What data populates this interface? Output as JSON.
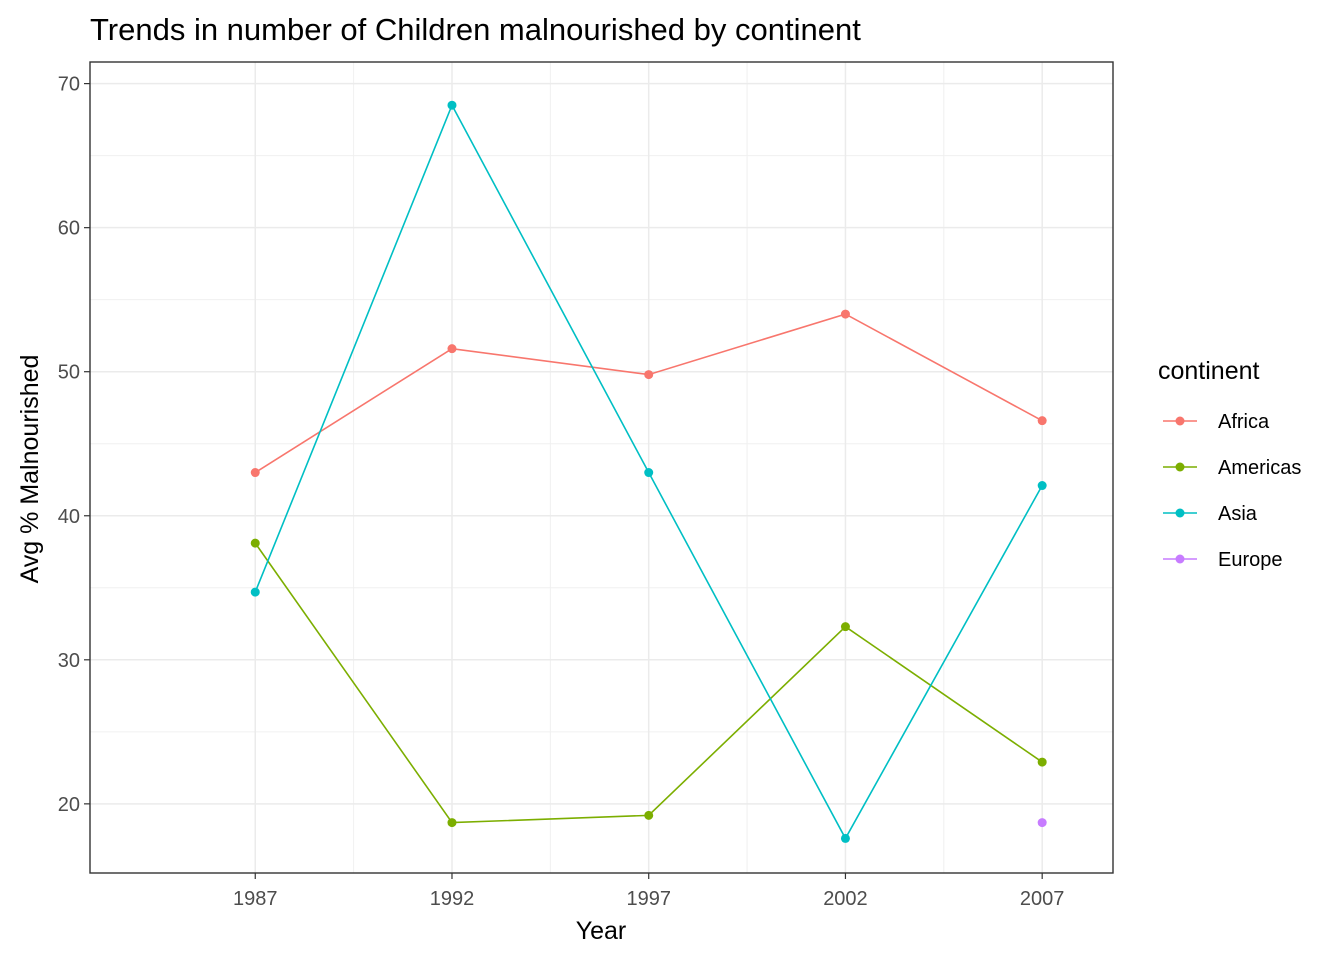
{
  "chart_data": {
    "type": "line",
    "title": "Trends in number of Children malnourished by continent",
    "xlabel": "Year",
    "ylabel": "Avg % Malnourished",
    "x": [
      1987,
      1992,
      1997,
      2002,
      2007
    ],
    "x_tick_labels": [
      "1987",
      "1992",
      "1997",
      "2002",
      "2007"
    ],
    "xlim": [
      1982.8,
      2008.8
    ],
    "ylim": [
      15.2,
      71.5
    ],
    "y_ticks": [
      20,
      30,
      40,
      50,
      60,
      70
    ],
    "y_tick_labels": [
      "20",
      "30",
      "40",
      "50",
      "60",
      "70"
    ],
    "grid": true,
    "legend": {
      "title": "continent",
      "position": "right"
    },
    "series": [
      {
        "name": "Africa",
        "color": "#F8766D",
        "values": [
          43.0,
          51.6,
          49.8,
          54.0,
          46.6
        ]
      },
      {
        "name": "Americas",
        "color": "#7CAE00",
        "values": [
          38.1,
          18.7,
          19.2,
          32.3,
          22.9
        ]
      },
      {
        "name": "Asia",
        "color": "#00BFC4",
        "values": [
          34.7,
          68.5,
          43.0,
          17.6,
          42.1
        ]
      },
      {
        "name": "Europe",
        "color": "#C77CFF",
        "values": [
          null,
          null,
          null,
          null,
          18.7
        ]
      }
    ]
  }
}
